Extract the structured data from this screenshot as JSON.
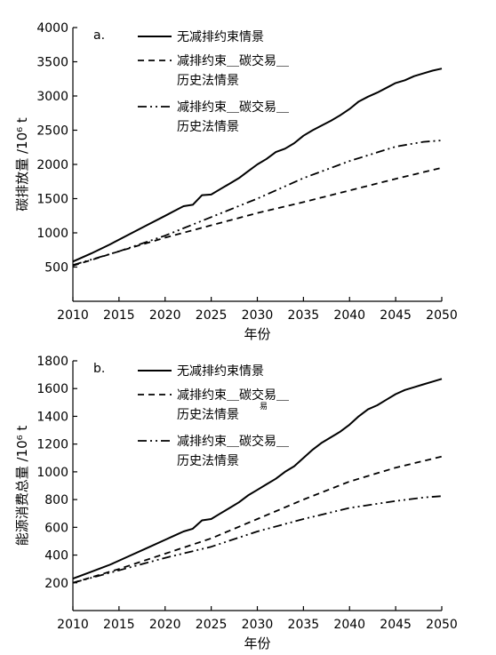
{
  "chart_data": [
    {
      "type": "line",
      "panel_label": "a.",
      "xlabel": "年份",
      "ylabel": "碳排放量 /10⁶ t",
      "x_ticks": [
        2010,
        2015,
        2020,
        2025,
        2030,
        2035,
        2040,
        2045,
        2050
      ],
      "y_ticks": [
        500,
        1000,
        1500,
        2000,
        2500,
        3000,
        3500,
        4000
      ],
      "xlim": [
        2010,
        2050
      ],
      "ylim": [
        0,
        4000
      ],
      "grid": false,
      "legend_position": "top-left",
      "series": [
        {
          "name": "无减排约束情景",
          "legend_lines": [
            "无减排约束情景"
          ],
          "style": "solid",
          "x": [
            2010,
            2012,
            2014,
            2016,
            2018,
            2020,
            2021,
            2022,
            2023,
            2024,
            2025,
            2026,
            2027,
            2028,
            2029,
            2030,
            2031,
            2032,
            2033,
            2034,
            2035,
            2036,
            2037,
            2038,
            2039,
            2040,
            2041,
            2042,
            2043,
            2044,
            2045,
            2046,
            2047,
            2048,
            2049,
            2050
          ],
          "values": [
            580,
            700,
            830,
            970,
            1110,
            1250,
            1320,
            1390,
            1410,
            1550,
            1560,
            1640,
            1720,
            1800,
            1900,
            2000,
            2080,
            2180,
            2230,
            2310,
            2420,
            2500,
            2570,
            2640,
            2720,
            2810,
            2920,
            2990,
            3050,
            3120,
            3190,
            3230,
            3290,
            3330,
            3370,
            3400
          ]
        },
        {
          "name": "减排约束＿碳交易＿历史法情景",
          "legend_lines": [
            "减排约束＿碳交易＿",
            "历史法情景"
          ],
          "style": "dashed",
          "x": [
            2010,
            2015,
            2020,
            2025,
            2030,
            2035,
            2040,
            2045,
            2050
          ],
          "values": [
            520,
            730,
            930,
            1110,
            1290,
            1450,
            1620,
            1790,
            1950
          ]
        },
        {
          "name": "减排约束＿碳交易＿历史法情景",
          "legend_lines": [
            "减排约束＿碳交易＿",
            "历史法情景"
          ],
          "style": "dashdotdot",
          "x": [
            2010,
            2015,
            2020,
            2025,
            2030,
            2035,
            2040,
            2045,
            2048,
            2050
          ],
          "values": [
            530,
            730,
            960,
            1230,
            1500,
            1800,
            2050,
            2260,
            2330,
            2350
          ]
        }
      ]
    },
    {
      "type": "line",
      "panel_label": "b.",
      "xlabel": "年份",
      "ylabel": "能源消费总量 /10⁶ t",
      "x_ticks": [
        2010,
        2015,
        2020,
        2025,
        2030,
        2035,
        2040,
        2045,
        2050
      ],
      "y_ticks": [
        200,
        400,
        600,
        800,
        1000,
        1200,
        1400,
        1600,
        1800
      ],
      "xlim": [
        2010,
        2050
      ],
      "ylim": [
        0,
        1800
      ],
      "grid": false,
      "legend_position": "top-left",
      "stray_marks": [
        "易"
      ],
      "series": [
        {
          "name": "无减排约束情景",
          "legend_lines": [
            "无减排约束情景"
          ],
          "style": "solid",
          "x": [
            2010,
            2012,
            2014,
            2016,
            2018,
            2020,
            2021,
            2022,
            2023,
            2024,
            2025,
            2026,
            2027,
            2028,
            2029,
            2030,
            2031,
            2032,
            2033,
            2034,
            2035,
            2036,
            2037,
            2038,
            2039,
            2040,
            2041,
            2042,
            2043,
            2044,
            2045,
            2046,
            2047,
            2048,
            2049,
            2050
          ],
          "values": [
            230,
            280,
            330,
            390,
            450,
            510,
            540,
            570,
            590,
            650,
            660,
            700,
            740,
            780,
            830,
            870,
            910,
            950,
            1000,
            1040,
            1100,
            1160,
            1210,
            1250,
            1290,
            1340,
            1400,
            1450,
            1480,
            1520,
            1560,
            1590,
            1610,
            1630,
            1650,
            1670
          ]
        },
        {
          "name": "减排约束＿碳交易＿历史法情景",
          "legend_lines": [
            "减排约束＿碳交易＿",
            "历史法情景"
          ],
          "style": "dashed",
          "x": [
            2010,
            2015,
            2020,
            2025,
            2030,
            2035,
            2040,
            2045,
            2050
          ],
          "values": [
            200,
            300,
            410,
            520,
            660,
            800,
            930,
            1030,
            1110
          ]
        },
        {
          "name": "减排约束＿碳交易＿历史法情景",
          "legend_lines": [
            "减排约束＿碳交易＿",
            "历史法情景"
          ],
          "style": "dashdotdot",
          "x": [
            2010,
            2015,
            2020,
            2025,
            2030,
            2035,
            2040,
            2045,
            2048,
            2050
          ],
          "values": [
            200,
            290,
            380,
            460,
            570,
            660,
            740,
            790,
            815,
            825
          ]
        }
      ]
    }
  ]
}
